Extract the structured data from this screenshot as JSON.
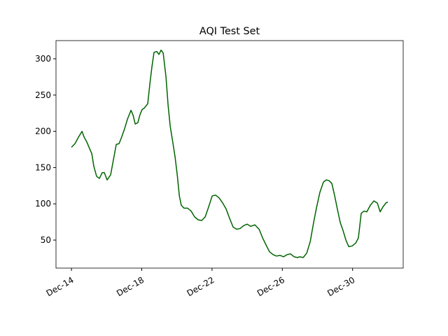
{
  "chart_data": {
    "type": "line",
    "title": "AQI Test Set",
    "x": [
      14.0,
      14.2,
      14.4,
      14.6,
      14.72,
      14.88,
      15.0,
      15.16,
      15.27,
      15.43,
      15.59,
      15.75,
      15.87,
      16.03,
      16.23,
      16.39,
      16.55,
      16.71,
      16.87,
      17.03,
      17.19,
      17.39,
      17.51,
      17.63,
      17.78,
      17.9,
      18.02,
      18.14,
      18.34,
      18.46,
      18.58,
      18.7,
      18.86,
      18.98,
      19.1,
      19.22,
      19.38,
      19.5,
      19.62,
      19.78,
      19.9,
      20.02,
      20.14,
      20.25,
      20.41,
      20.61,
      20.81,
      21.01,
      21.21,
      21.41,
      21.61,
      21.81,
      22.01,
      22.21,
      22.41,
      22.61,
      22.8,
      23.0,
      23.2,
      23.4,
      23.6,
      23.8,
      24.0,
      24.2,
      24.44,
      24.68,
      24.88,
      25.08,
      25.27,
      25.47,
      25.67,
      25.87,
      26.07,
      26.27,
      26.47,
      26.67,
      26.87,
      26.99,
      27.19,
      27.39,
      27.59,
      27.78,
      27.94,
      28.14,
      28.34,
      28.5,
      28.66,
      28.82,
      28.98,
      29.14,
      29.3,
      29.46,
      29.62,
      29.78,
      29.98,
      30.18,
      30.33,
      30.49,
      30.65,
      30.81,
      31.01,
      31.21,
      31.41,
      31.57,
      31.73,
      31.93,
      32.01
    ],
    "series": [
      {
        "color": "#006400",
        "values": [
          178,
          183,
          192,
          200,
          192,
          185,
          178,
          169,
          152,
          138,
          135,
          143,
          143,
          133,
          140,
          161,
          182,
          183,
          193,
          204,
          217,
          229,
          222,
          210,
          212,
          223,
          230,
          232,
          238,
          265,
          289,
          309,
          310,
          306,
          312,
          308,
          275,
          236,
          207,
          183,
          164,
          140,
          111,
          98,
          94,
          94,
          90,
          82,
          78,
          77,
          82,
          96,
          111,
          112,
          108,
          101,
          93,
          80,
          68,
          65,
          66,
          70,
          72,
          69,
          71,
          65,
          53,
          43,
          34,
          30,
          28,
          29,
          27,
          30,
          31,
          27,
          26,
          27,
          26,
          32,
          48,
          74,
          94,
          116,
          130,
          133,
          132,
          128,
          111,
          92,
          74,
          63,
          50,
          41,
          42,
          46,
          53,
          87,
          90,
          89,
          98,
          104,
          101,
          89,
          96,
          102,
          102
        ]
      }
    ],
    "xlim": [
      13.12,
      32.88
    ],
    "xticks": [
      {
        "value": 14,
        "label": "Dec-14"
      },
      {
        "value": 18,
        "label": "Dec-18"
      },
      {
        "value": 22,
        "label": "Dec-22"
      },
      {
        "value": 26,
        "label": "Dec-26"
      },
      {
        "value": 30,
        "label": "Dec-30"
      }
    ],
    "ylim": [
      11.4,
      325.1
    ],
    "yticks": [
      50,
      100,
      150,
      200,
      250,
      300
    ]
  }
}
